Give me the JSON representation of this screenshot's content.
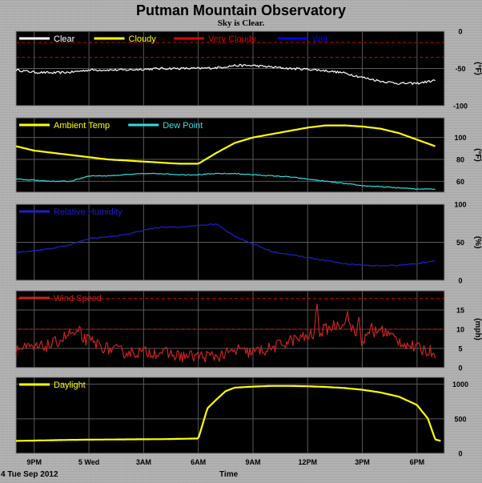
{
  "header": {
    "title": "Putman Mountain Observatory",
    "subtitle": "Sky is Clear."
  },
  "footer": {
    "date_label": "4 Tue Sep 2012",
    "xlabel": "Time"
  },
  "colors": {
    "panel_bg": "#000000",
    "grid": "#5a5a5a",
    "threshold": "#cc0000",
    "clear": "#ffffff",
    "cloudy": "#ffff00",
    "very_cloudy": "#dd0000",
    "wet": "#0000ff",
    "ambient": "#ffff00",
    "dewpoint": "#33dddd",
    "humidity": "#1e1ecc",
    "wind": "#cc2222",
    "daylight": "#ffff00"
  },
  "chart_data": [
    {
      "type": "line",
      "id": "sky",
      "legend": [
        {
          "name": "Clear",
          "color": "#ffffff"
        },
        {
          "name": "Cloudy",
          "color": "#ffff00"
        },
        {
          "name": "Very Cloudy",
          "color": "#dd0000"
        },
        {
          "name": "Wet",
          "color": "#0000ff"
        }
      ],
      "ylabel": "(°F)",
      "ylim": [
        -100,
        0
      ],
      "yticks": [
        0,
        -50,
        -100
      ],
      "thresholds": [
        -15,
        -35
      ],
      "x": [
        0,
        1,
        2,
        3,
        4,
        5,
        6,
        7,
        8,
        9,
        10,
        11,
        12,
        13,
        14,
        15,
        16,
        17,
        18,
        19,
        20,
        21,
        22,
        23
      ],
      "series": [
        {
          "name": "Clear",
          "color": "#ffffff",
          "noise": 1.5,
          "values": [
            -52,
            -55,
            -56,
            -55,
            -52,
            -52,
            -52,
            -51,
            -50,
            -50,
            -50,
            -49,
            -46,
            -46,
            -48,
            -50,
            -51,
            -53,
            -56,
            -62,
            -67,
            -70,
            -70,
            -66
          ]
        }
      ]
    },
    {
      "type": "line",
      "id": "temperature",
      "legend": [
        {
          "name": "Ambient Temp",
          "color": "#ffff00"
        },
        {
          "name": "Dew Point",
          "color": "#33dddd"
        }
      ],
      "ylabel": "(°F)",
      "ylim": [
        50,
        118
      ],
      "yticks": [
        60,
        80,
        100
      ],
      "x": [
        0,
        1,
        2,
        3,
        4,
        5,
        6,
        7,
        8,
        9,
        10,
        11,
        12,
        13,
        14,
        15,
        16,
        17,
        18,
        19,
        20,
        21,
        22,
        23
      ],
      "series": [
        {
          "name": "Ambient Temp",
          "color": "#ffff00",
          "noise": 0,
          "values": [
            92,
            88,
            86,
            84,
            82,
            80,
            79,
            78,
            77,
            76,
            76,
            86,
            95,
            100,
            103,
            106,
            109,
            111,
            111,
            110,
            108,
            104,
            98,
            92
          ]
        },
        {
          "name": "Dew Point",
          "color": "#33dddd",
          "noise": 0.4,
          "values": [
            62,
            61,
            60,
            60,
            65,
            65,
            66,
            67,
            67,
            66,
            66,
            67,
            67,
            66,
            65,
            64,
            62,
            60,
            58,
            56,
            55,
            54,
            53,
            53
          ]
        }
      ]
    },
    {
      "type": "line",
      "id": "humidity",
      "legend": [
        {
          "name": "Relative Humidity",
          "color": "#1e1ecc"
        }
      ],
      "ylabel": "(%)",
      "ylim": [
        0,
        100
      ],
      "yticks": [
        0,
        50,
        100
      ],
      "x": [
        0,
        1,
        2,
        3,
        4,
        5,
        6,
        7,
        8,
        9,
        10,
        11,
        12,
        13,
        14,
        15,
        16,
        17,
        18,
        19,
        20,
        21,
        22,
        23
      ],
      "series": [
        {
          "name": "Relative Humidity",
          "color": "#1e1ecc",
          "noise": 0.8,
          "values": [
            37,
            39,
            42,
            47,
            55,
            57,
            60,
            66,
            70,
            70,
            72,
            74,
            58,
            48,
            38,
            34,
            30,
            26,
            22,
            20,
            19,
            20,
            22,
            26
          ]
        }
      ]
    },
    {
      "type": "line",
      "id": "wind",
      "legend": [
        {
          "name": "Wind Speed",
          "color": "#cc2222"
        }
      ],
      "ylabel": "(mph)",
      "ylim": [
        0,
        20
      ],
      "yticks": [
        0,
        5,
        10,
        15
      ],
      "thresholds": [
        18,
        10
      ],
      "x": [
        0,
        1,
        2,
        3,
        4,
        5,
        6,
        7,
        8,
        9,
        10,
        11,
        12,
        13,
        14,
        15,
        16,
        17,
        18,
        19,
        20,
        21,
        22,
        23
      ],
      "series": [
        {
          "name": "Wind Speed",
          "color": "#cc2222",
          "noise": 1.6,
          "values": [
            5,
            5,
            6,
            9,
            7,
            5,
            4,
            4,
            4,
            3,
            3,
            3,
            4,
            4,
            5,
            7,
            8,
            10,
            12,
            7,
            10,
            7,
            5,
            4
          ],
          "spikes": [
            [
              3.5,
              11
            ],
            [
              12.2,
              6
            ],
            [
              16.5,
              18
            ],
            [
              18.2,
              15
            ],
            [
              18.8,
              14
            ],
            [
              19.5,
              12
            ]
          ]
        }
      ]
    },
    {
      "type": "line",
      "id": "daylight",
      "legend": [
        {
          "name": "Daylight",
          "color": "#ffff00"
        }
      ],
      "ylabel": "",
      "ylim": [
        0,
        1100
      ],
      "yticks": [
        0,
        500,
        1000
      ],
      "x": [
        0,
        1,
        2,
        3,
        4,
        5,
        6,
        7,
        8,
        9,
        10,
        10.5,
        11,
        11.5,
        12,
        13,
        14,
        15,
        16,
        17,
        18,
        19,
        20,
        21,
        22,
        22.6,
        23,
        23.3
      ],
      "series": [
        {
          "name": "Daylight",
          "color": "#ffff00",
          "noise": 0,
          "values": [
            180,
            185,
            190,
            195,
            198,
            200,
            202,
            204,
            205,
            210,
            215,
            650,
            780,
            900,
            950,
            965,
            975,
            975,
            970,
            960,
            945,
            920,
            880,
            820,
            700,
            500,
            200,
            180
          ]
        }
      ]
    }
  ],
  "time_axis": {
    "labels": [
      "9PM",
      "5 Wed",
      "3AM",
      "6AM",
      "9AM",
      "12PM",
      "3PM",
      "6PM"
    ],
    "positions": [
      1,
      4,
      7,
      10,
      13,
      16,
      19,
      22
    ],
    "range": [
      0,
      23.5
    ]
  }
}
